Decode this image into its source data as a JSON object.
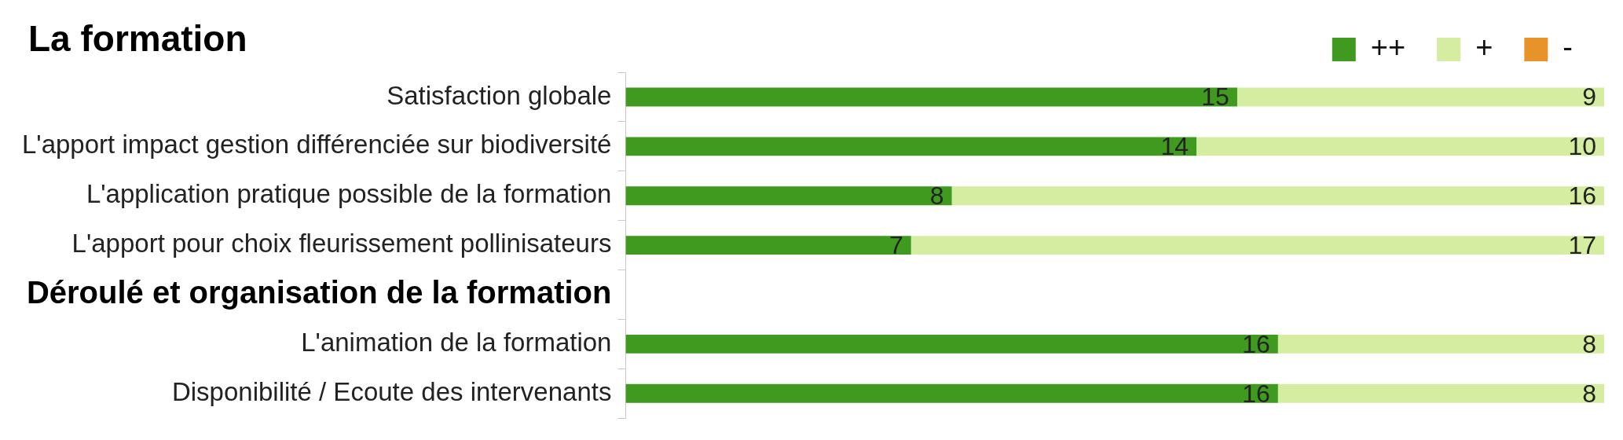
{
  "chart_data": {
    "type": "bar",
    "orientation": "horizontal",
    "stacked": true,
    "title": "La formation",
    "categories": [
      "Satisfaction globale",
      "L'apport impact gestion différenciée sur biodiversité",
      "L'application pratique possible de la formation",
      "L'apport pour choix fleurissement pollinisateurs",
      "Déroulé et organisation de la formation",
      "L'animation de la formation",
      "Disponibilité / Ecoute des intervenants"
    ],
    "series": [
      {
        "name": "++",
        "color": "#3f9a1f",
        "values": [
          15,
          14,
          8,
          7,
          null,
          16,
          16
        ]
      },
      {
        "name": "+",
        "color": "#d4eda0",
        "values": [
          9,
          10,
          16,
          17,
          null,
          8,
          8
        ]
      },
      {
        "name": "-",
        "color": "#e8922a",
        "values": [
          null,
          null,
          null,
          null,
          null,
          null,
          null
        ]
      }
    ],
    "xlim": [
      0,
      24
    ],
    "tick_labels": "y",
    "data_labels": true,
    "legend": "top right"
  }
}
